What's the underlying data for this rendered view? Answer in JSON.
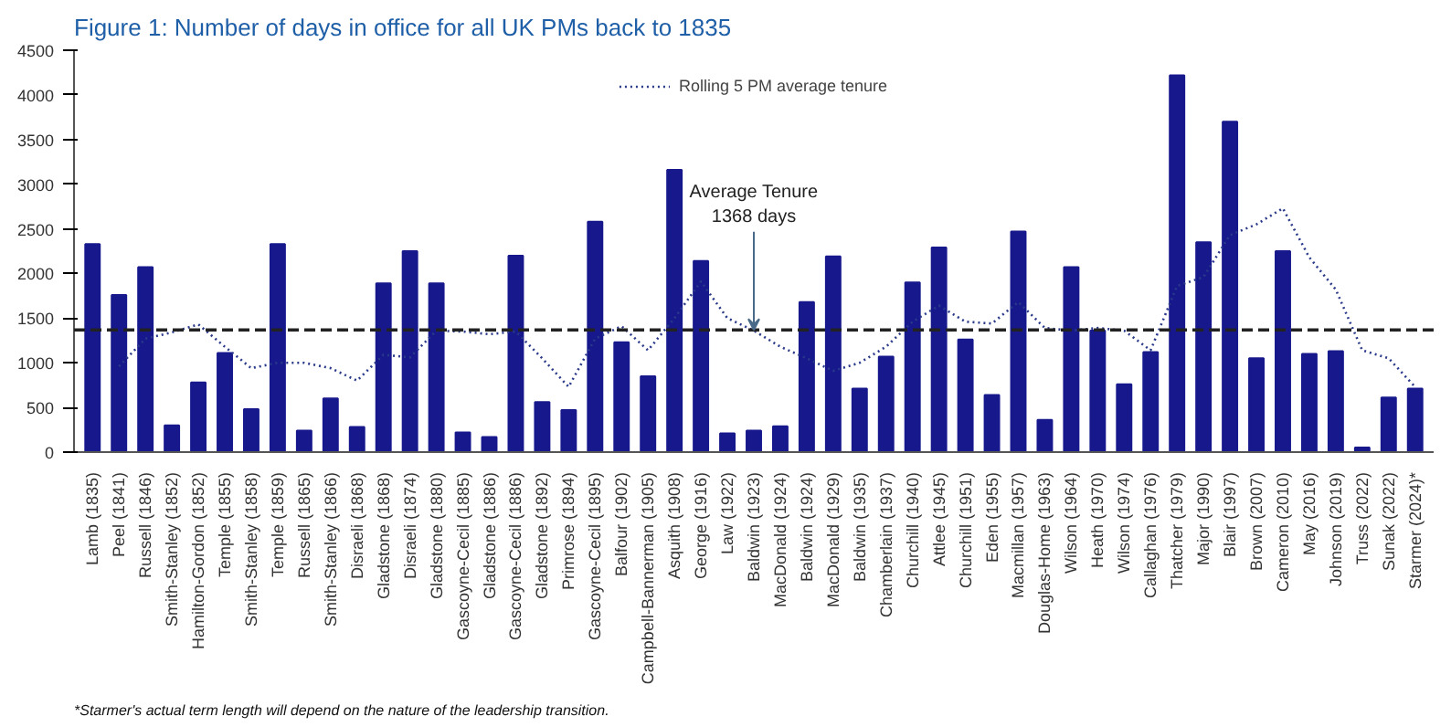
{
  "chart_data": {
    "type": "bar",
    "title": "Figure 1: Number of days in office for all UK PMs back to 1835",
    "categories": [
      "Lamb (1835)",
      "Peel (1841)",
      "Russell (1846)",
      "Smith-Stanley (1852)",
      "Hamilton-Gordon (1852)",
      "Temple (1855)",
      "Smith-Stanley (1858)",
      "Temple (1859)",
      "Russell (1865)",
      "Smith-Stanley (1866)",
      "Disraeli (1868)",
      "Gladstone (1868)",
      "Disraeli (1874)",
      "Gladstone (1880)",
      "Gascoyne-Cecil (1885)",
      "Gladstone (1886)",
      "Gascoyne-Cecil (1886)",
      "Gladstone (1892)",
      "Primrose (1894)",
      "Gascoyne-Cecil (1895)",
      "Balfour (1902)",
      "Campbell-Bannerman (1905)",
      "Asquith (1908)",
      "George (1916)",
      "Law (1922)",
      "Baldwin (1923)",
      "MacDonald (1924)",
      "Baldwin (1924)",
      "MacDonald (1929)",
      "Baldwin (1935)",
      "Chamberlain (1937)",
      "Churchill (1940)",
      "Attlee (1945)",
      "Churchill (1951)",
      "Eden (1955)",
      "Macmillan (1957)",
      "Douglas-Home (1963)",
      "Wilson (1964)",
      "Heath (1970)",
      "Wilson (1974)",
      "Callaghan (1976)",
      "Thatcher (1979)",
      "Major (1990)",
      "Blair (1997)",
      "Brown (2007)",
      "Cameron (2010)",
      "May (2016)",
      "Johnson (2019)",
      "Truss (2022)",
      "Sunak (2022)",
      "Starmer (2024)*"
    ],
    "series": [
      {
        "color": "#16188c",
        "values": [
          2330,
          1760,
          2070,
          300,
          780,
          1110,
          480,
          2330,
          240,
          600,
          280,
          1890,
          2250,
          1890,
          220,
          170,
          2200,
          560,
          470,
          2580,
          1230,
          850,
          3160,
          2140,
          210,
          240,
          290,
          1680,
          2190,
          710,
          1070,
          1900,
          2290,
          1260,
          640,
          2470,
          360,
          2070,
          1360,
          760,
          1120,
          4220,
          2350,
          3700,
          1050,
          2250,
          1100,
          1130,
          50,
          610,
          710
        ]
      },
      {
        "type": "line",
        "name": "Rolling 5 PM average tenure",
        "color": "#2a3a8a",
        "line_style": "dotted",
        "marker": "none",
        "values": [
          null,
          960,
          1270,
          1340,
          1430,
          1180,
          940,
          1000,
          1000,
          940,
          800,
          1090,
          1060,
          1360,
          1350,
          1320,
          1350,
          1050,
          730,
          1270,
          1410,
          1140,
          1500,
          1910,
          1500,
          1360,
          1180,
          1050,
          910,
          1000,
          1180,
          1460,
          1640,
          1460,
          1440,
          1680,
          1390,
          1360,
          1390,
          1360,
          1140,
          1860,
          1960,
          2430,
          2550,
          2730,
          2180,
          1820,
          1140,
          1050,
          730
        ]
      }
    ],
    "ylim": [
      0,
      4500
    ],
    "yticks": [
      0,
      500,
      1000,
      1500,
      2000,
      2500,
      3000,
      3500,
      4000,
      4500
    ],
    "grid": false,
    "legend": "top",
    "ref_lines": [
      {
        "axis": "y",
        "value": 1368,
        "color": "#222222",
        "line_style": "dashed"
      }
    ],
    "annotations": [
      {
        "text": "Average Tenure\n1368 days",
        "x": "Baldwin (1923)",
        "y": 1368
      },
      "*Starmer's actual term length will depend on the nature of the leadership transition."
    ]
  }
}
